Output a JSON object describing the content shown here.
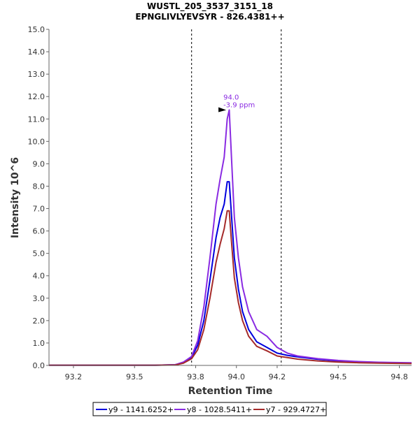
{
  "chart_data": {
    "type": "line",
    "title": "WUSTL_205_3537_3151_18",
    "subtitle": "EPNGLIVLYEVSYR - 826.4381++",
    "xlabel": "Retention Time",
    "ylabel": "Intensity 10^6",
    "xlim": [
      93.08,
      94.86
    ],
    "ylim": [
      0,
      15
    ],
    "x_ticks": [
      "93.2",
      "93.5",
      "93.8",
      "94.0",
      "94.2",
      "94.5",
      "94.8"
    ],
    "x_tick_values": [
      93.2,
      93.5,
      93.8,
      94.0,
      94.2,
      94.5,
      94.8
    ],
    "y_ticks": [
      "0.0",
      "1.0",
      "2.0",
      "3.0",
      "4.0",
      "5.0",
      "6.0",
      "7.0",
      "8.0",
      "9.0",
      "10.0",
      "11.0",
      "12.0",
      "13.0",
      "14.0",
      "15.0"
    ],
    "y_tick_values": [
      0,
      1,
      2,
      3,
      4,
      5,
      6,
      7,
      8,
      9,
      10,
      11,
      12,
      13,
      14,
      15
    ],
    "grid": false,
    "legend_position": "bottom",
    "vertical_markers": [
      93.78,
      94.22
    ],
    "annotation": {
      "line1": "94.0",
      "line2": "-3.9 ppm",
      "x": 93.96,
      "y": 11.4,
      "color": "#8a2be2"
    },
    "series": [
      {
        "name": "y9 - 1141.6252+",
        "color": "#0000dd",
        "x": [
          93.08,
          93.6,
          93.7,
          93.74,
          93.78,
          93.81,
          93.84,
          93.87,
          93.9,
          93.92,
          93.94,
          93.955,
          93.965,
          93.975,
          93.99,
          94.01,
          94.03,
          94.06,
          94.1,
          94.15,
          94.2,
          94.25,
          94.3,
          94.4,
          94.5,
          94.6,
          94.7,
          94.86
        ],
        "y": [
          0.01,
          0.01,
          0.03,
          0.12,
          0.35,
          0.9,
          2.0,
          3.8,
          5.7,
          6.6,
          7.2,
          8.2,
          8.2,
          6.8,
          4.8,
          3.4,
          2.4,
          1.6,
          1.05,
          0.8,
          0.55,
          0.45,
          0.38,
          0.27,
          0.2,
          0.16,
          0.13,
          0.1
        ]
      },
      {
        "name": "y8 - 1028.5411+",
        "color": "#8a2be2",
        "x": [
          93.08,
          93.6,
          93.7,
          93.74,
          93.78,
          93.81,
          93.84,
          93.87,
          93.9,
          93.92,
          93.94,
          93.955,
          93.965,
          93.975,
          93.99,
          94.01,
          94.03,
          94.06,
          94.1,
          94.15,
          94.2,
          94.25,
          94.3,
          94.4,
          94.5,
          94.6,
          94.7,
          94.86
        ],
        "y": [
          0.01,
          0.01,
          0.03,
          0.15,
          0.4,
          1.1,
          2.6,
          4.8,
          7.2,
          8.3,
          9.3,
          11.0,
          11.4,
          9.4,
          6.6,
          4.8,
          3.5,
          2.4,
          1.6,
          1.3,
          0.8,
          0.55,
          0.42,
          0.3,
          0.22,
          0.17,
          0.14,
          0.12
        ]
      },
      {
        "name": "y7 - 929.4727+",
        "color": "#a52a2a",
        "x": [
          93.08,
          93.6,
          93.7,
          93.74,
          93.78,
          93.81,
          93.84,
          93.87,
          93.9,
          93.92,
          93.94,
          93.955,
          93.965,
          93.975,
          93.99,
          94.01,
          94.03,
          94.06,
          94.1,
          94.15,
          94.2,
          94.25,
          94.3,
          94.4,
          94.5,
          94.6,
          94.7,
          94.86
        ],
        "y": [
          0.01,
          0.01,
          0.02,
          0.1,
          0.3,
          0.7,
          1.6,
          3.0,
          4.6,
          5.4,
          6.1,
          6.9,
          6.9,
          5.6,
          3.9,
          2.8,
          2.0,
          1.3,
          0.85,
          0.65,
          0.42,
          0.35,
          0.28,
          0.2,
          0.15,
          0.12,
          0.1,
          0.08
        ]
      }
    ]
  }
}
